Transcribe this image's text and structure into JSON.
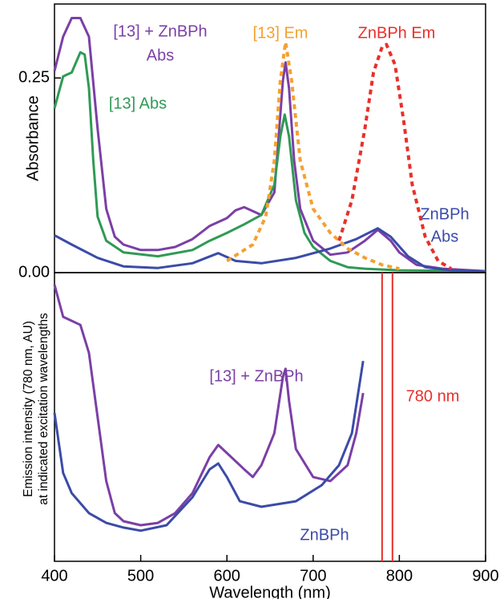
{
  "chart_data": [
    {
      "type": "line",
      "y_label": "Absorbance",
      "xlim": [
        400,
        900
      ],
      "ylim": [
        0,
        0.345
      ],
      "yticks": [
        {
          "value": 0,
          "label": "0.00"
        },
        {
          "value": 0.25,
          "label": "0.25"
        }
      ],
      "series": [
        {
          "name": [
            "[13] + ZnBPh",
            "Abs"
          ],
          "color": "#7b3fa6",
          "dash": false,
          "x": [
            400,
            410,
            420,
            430,
            440,
            450,
            460,
            470,
            480,
            500,
            520,
            540,
            560,
            580,
            600,
            610,
            620,
            640,
            655,
            660,
            665,
            668,
            672,
            678,
            685,
            700,
            720,
            740,
            760,
            775,
            790,
            800,
            820,
            850,
            900
          ],
          "values": [
            0.259,
            0.303,
            0.327,
            0.327,
            0.303,
            0.185,
            0.082,
            0.046,
            0.036,
            0.029,
            0.029,
            0.033,
            0.043,
            0.06,
            0.07,
            0.08,
            0.084,
            0.074,
            0.103,
            0.175,
            0.247,
            0.27,
            0.237,
            0.144,
            0.082,
            0.041,
            0.023,
            0.026,
            0.041,
            0.055,
            0.041,
            0.026,
            0.01,
            0.005,
            0.002
          ]
        },
        {
          "name": [
            "[13] Abs"
          ],
          "color": "#2f9a55",
          "dash": false,
          "x": [
            400,
            410,
            420,
            430,
            435,
            440,
            445,
            450,
            460,
            480,
            520,
            560,
            580,
            600,
            620,
            640,
            655,
            662,
            667,
            672,
            680,
            690,
            700,
            720,
            740,
            760,
            800,
            900
          ],
          "values": [
            0.211,
            0.252,
            0.257,
            0.283,
            0.28,
            0.237,
            0.144,
            0.072,
            0.041,
            0.026,
            0.021,
            0.029,
            0.041,
            0.051,
            0.062,
            0.074,
            0.113,
            0.175,
            0.203,
            0.175,
            0.093,
            0.051,
            0.033,
            0.015,
            0.007,
            0.005,
            0.003,
            0.002
          ]
        },
        {
          "name": [
            "ZnBPh",
            "Abs"
          ],
          "color": "#3b4ba8",
          "dash": false,
          "x": [
            400,
            420,
            450,
            480,
            520,
            560,
            590,
            610,
            640,
            680,
            720,
            750,
            775,
            790,
            810,
            830,
            860,
            900
          ],
          "values": [
            0.048,
            0.036,
            0.019,
            0.008,
            0.006,
            0.012,
            0.025,
            0.015,
            0.012,
            0.019,
            0.031,
            0.043,
            0.057,
            0.046,
            0.021,
            0.007,
            0.003,
            0.002
          ]
        },
        {
          "name": [
            "[13] Em"
          ],
          "color": "#f5a030",
          "dash": true,
          "x": [
            600,
            630,
            645,
            655,
            662,
            668,
            675,
            685,
            700,
            720,
            740,
            760,
            780,
            800
          ],
          "values": [
            0.015,
            0.036,
            0.072,
            0.144,
            0.247,
            0.296,
            0.247,
            0.144,
            0.082,
            0.051,
            0.031,
            0.019,
            0.01,
            0.005
          ]
        },
        {
          "name": [
            "ZnBPh Em"
          ],
          "color": "#e8302a",
          "dash": true,
          "x": [
            730,
            745,
            760,
            770,
            780,
            785,
            795,
            805,
            815,
            830,
            845,
            860
          ],
          "values": [
            0.041,
            0.093,
            0.185,
            0.257,
            0.29,
            0.293,
            0.267,
            0.195,
            0.113,
            0.046,
            0.015,
            0.005
          ]
        }
      ]
    },
    {
      "type": "line",
      "y_label": [
        "Emission intensity (780 nm, AU)",
        "at indicated excitation wavelengths"
      ],
      "x_label": "Wavelength (nm)",
      "xlim": [
        400,
        900
      ],
      "ylim": [
        0,
        1
      ],
      "xticks": [
        400,
        500,
        600,
        700,
        800,
        900
      ],
      "marker_lines": {
        "x": [
          780,
          792
        ],
        "color": "#e8302a",
        "label": "780 nm"
      },
      "series": [
        {
          "name": [
            "[13] + ZnBPh"
          ],
          "color": "#7b3fa6",
          "dash": false,
          "x": [
            400,
            410,
            420,
            430,
            440,
            450,
            460,
            470,
            480,
            500,
            520,
            540,
            560,
            580,
            590,
            600,
            620,
            630,
            640,
            655,
            665,
            668,
            672,
            680,
            700,
            720,
            740,
            750,
            758
          ],
          "values": [
            0.958,
            0.847,
            0.833,
            0.819,
            0.722,
            0.5,
            0.278,
            0.167,
            0.139,
            0.125,
            0.133,
            0.167,
            0.236,
            0.361,
            0.403,
            0.375,
            0.319,
            0.292,
            0.333,
            0.444,
            0.639,
            0.667,
            0.556,
            0.389,
            0.292,
            0.278,
            0.333,
            0.444,
            0.583
          ]
        },
        {
          "name": [
            "ZnBPh"
          ],
          "color": "#3b4ba8",
          "dash": false,
          "x": [
            400,
            410,
            420,
            440,
            460,
            480,
            500,
            530,
            560,
            580,
            590,
            600,
            615,
            640,
            680,
            710,
            730,
            745,
            758
          ],
          "values": [
            0.514,
            0.306,
            0.236,
            0.167,
            0.133,
            0.117,
            0.106,
            0.125,
            0.222,
            0.319,
            0.339,
            0.292,
            0.208,
            0.189,
            0.208,
            0.264,
            0.333,
            0.444,
            0.694
          ]
        }
      ]
    }
  ]
}
